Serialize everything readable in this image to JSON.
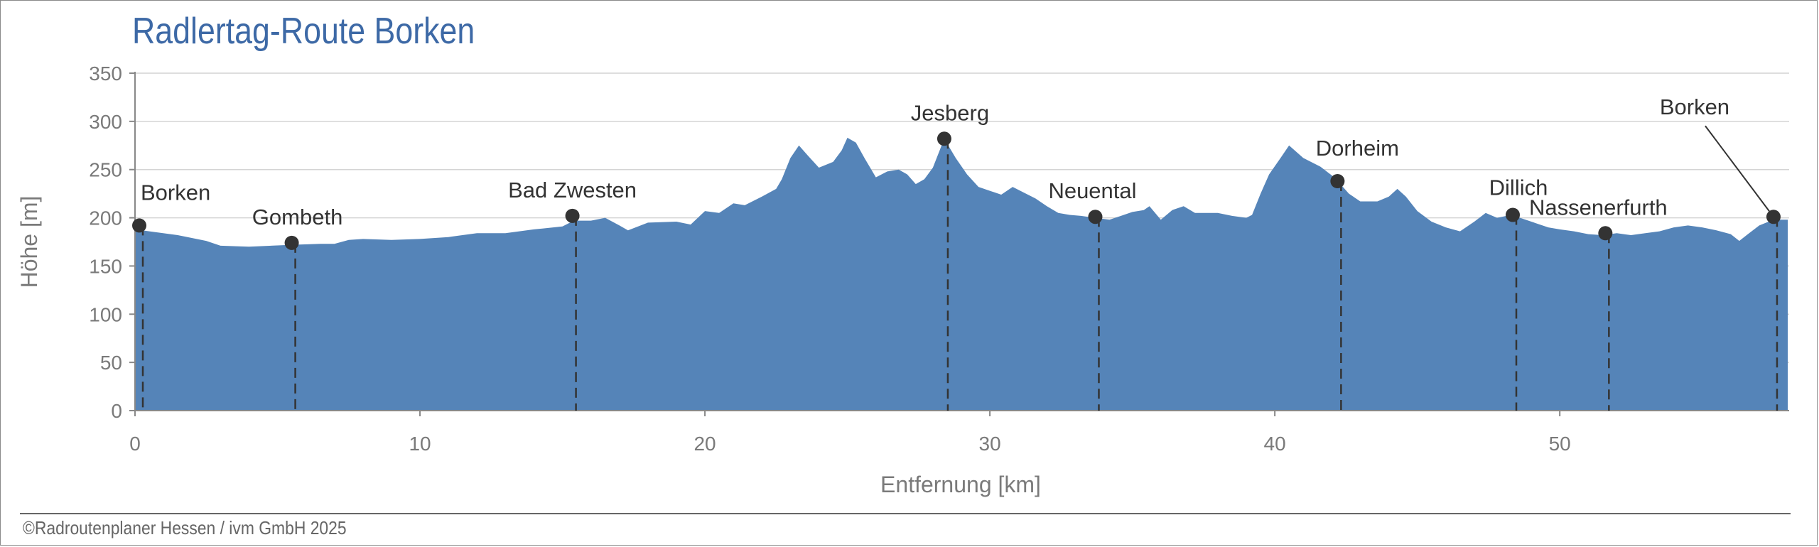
{
  "chart_data": {
    "type": "area",
    "title": "Radlertag-Route Borken",
    "xlabel": "Entfernung [km]",
    "ylabel": "Höhe [m]",
    "xlim": [
      0,
      58
    ],
    "ylim": [
      0,
      350
    ],
    "x_ticks": [
      0,
      10,
      20,
      30,
      40,
      50
    ],
    "y_ticks": [
      0,
      50,
      100,
      150,
      200,
      250,
      300,
      350
    ],
    "grid": true,
    "fill_color": "#5584b8",
    "profile": [
      [
        0,
        188
      ],
      [
        0.5,
        186
      ],
      [
        1.5,
        182
      ],
      [
        2.5,
        176
      ],
      [
        3.0,
        171
      ],
      [
        4.0,
        170
      ],
      [
        5.5,
        172
      ],
      [
        6.5,
        173
      ],
      [
        7.0,
        173
      ],
      [
        7.5,
        177
      ],
      [
        8.0,
        178
      ],
      [
        9.0,
        177
      ],
      [
        10.0,
        178
      ],
      [
        11.0,
        180
      ],
      [
        12.0,
        184
      ],
      [
        13.0,
        184
      ],
      [
        14.0,
        188
      ],
      [
        15.0,
        191
      ],
      [
        15.4,
        197
      ],
      [
        16.0,
        197
      ],
      [
        16.5,
        200
      ],
      [
        17.0,
        192
      ],
      [
        17.3,
        187
      ],
      [
        18.0,
        195
      ],
      [
        19.0,
        196
      ],
      [
        19.5,
        193
      ],
      [
        20.0,
        207
      ],
      [
        20.5,
        205
      ],
      [
        21.0,
        215
      ],
      [
        21.4,
        213
      ],
      [
        22.0,
        222
      ],
      [
        22.5,
        230
      ],
      [
        22.7,
        240
      ],
      [
        23.0,
        262
      ],
      [
        23.3,
        275
      ],
      [
        23.6,
        265
      ],
      [
        24.0,
        252
      ],
      [
        24.5,
        258
      ],
      [
        24.8,
        270
      ],
      [
        25.0,
        283
      ],
      [
        25.3,
        278
      ],
      [
        25.6,
        262
      ],
      [
        26.0,
        242
      ],
      [
        26.4,
        248
      ],
      [
        26.8,
        250
      ],
      [
        27.1,
        245
      ],
      [
        27.4,
        235
      ],
      [
        27.7,
        240
      ],
      [
        28.0,
        252
      ],
      [
        28.4,
        282
      ],
      [
        28.8,
        262
      ],
      [
        29.2,
        245
      ],
      [
        29.6,
        232
      ],
      [
        30.0,
        228
      ],
      [
        30.4,
        224
      ],
      [
        30.8,
        232
      ],
      [
        31.2,
        226
      ],
      [
        31.6,
        220
      ],
      [
        32.0,
        212
      ],
      [
        32.4,
        205
      ],
      [
        32.8,
        203
      ],
      [
        33.2,
        202
      ],
      [
        33.7,
        200
      ],
      [
        34.2,
        198
      ],
      [
        34.6,
        202
      ],
      [
        35.0,
        206
      ],
      [
        35.4,
        208
      ],
      [
        35.6,
        212
      ],
      [
        36.0,
        198
      ],
      [
        36.4,
        208
      ],
      [
        36.8,
        212
      ],
      [
        37.2,
        205
      ],
      [
        38.0,
        205
      ],
      [
        38.5,
        202
      ],
      [
        39.0,
        200
      ],
      [
        39.2,
        203
      ],
      [
        39.5,
        225
      ],
      [
        39.8,
        245
      ],
      [
        40.2,
        262
      ],
      [
        40.5,
        275
      ],
      [
        41.0,
        262
      ],
      [
        41.6,
        253
      ],
      [
        42.0,
        244
      ],
      [
        42.3,
        235
      ],
      [
        42.6,
        225
      ],
      [
        43.0,
        217
      ],
      [
        43.6,
        217
      ],
      [
        44.0,
        222
      ],
      [
        44.3,
        230
      ],
      [
        44.6,
        222
      ],
      [
        45.0,
        207
      ],
      [
        45.5,
        196
      ],
      [
        46.0,
        190
      ],
      [
        46.5,
        186
      ],
      [
        47.0,
        196
      ],
      [
        47.4,
        205
      ],
      [
        47.8,
        200
      ],
      [
        48.3,
        203
      ],
      [
        48.8,
        198
      ],
      [
        49.2,
        194
      ],
      [
        49.6,
        190
      ],
      [
        50.0,
        188
      ],
      [
        50.5,
        186
      ],
      [
        51.0,
        183
      ],
      [
        51.5,
        182
      ],
      [
        52.0,
        184
      ],
      [
        52.5,
        182
      ],
      [
        53.0,
        184
      ],
      [
        53.5,
        186
      ],
      [
        54.0,
        190
      ],
      [
        54.5,
        192
      ],
      [
        55.0,
        190
      ],
      [
        55.5,
        187
      ],
      [
        56.0,
        183
      ],
      [
        56.3,
        176
      ],
      [
        56.6,
        183
      ],
      [
        57.0,
        192
      ],
      [
        57.5,
        198
      ],
      [
        58.0,
        198
      ]
    ],
    "points": [
      {
        "label": "Borken",
        "x": 0.15,
        "y": 192
      },
      {
        "label": "Gombeth",
        "x": 5.5,
        "y": 174
      },
      {
        "label": "Bad Zwesten",
        "x": 15.35,
        "y": 202
      },
      {
        "label": "Jesberg",
        "x": 28.4,
        "y": 282
      },
      {
        "label": "Neuental",
        "x": 33.7,
        "y": 201
      },
      {
        "label": "Dorheim",
        "x": 42.2,
        "y": 238
      },
      {
        "label": "Dillich",
        "x": 48.35,
        "y": 203
      },
      {
        "label": "Nassenerfurth",
        "x": 51.6,
        "y": 184
      },
      {
        "label": "Borken",
        "x": 57.5,
        "y": 201
      }
    ]
  },
  "footer": "©Radroutenplaner Hessen / ivm GmbH 2025"
}
